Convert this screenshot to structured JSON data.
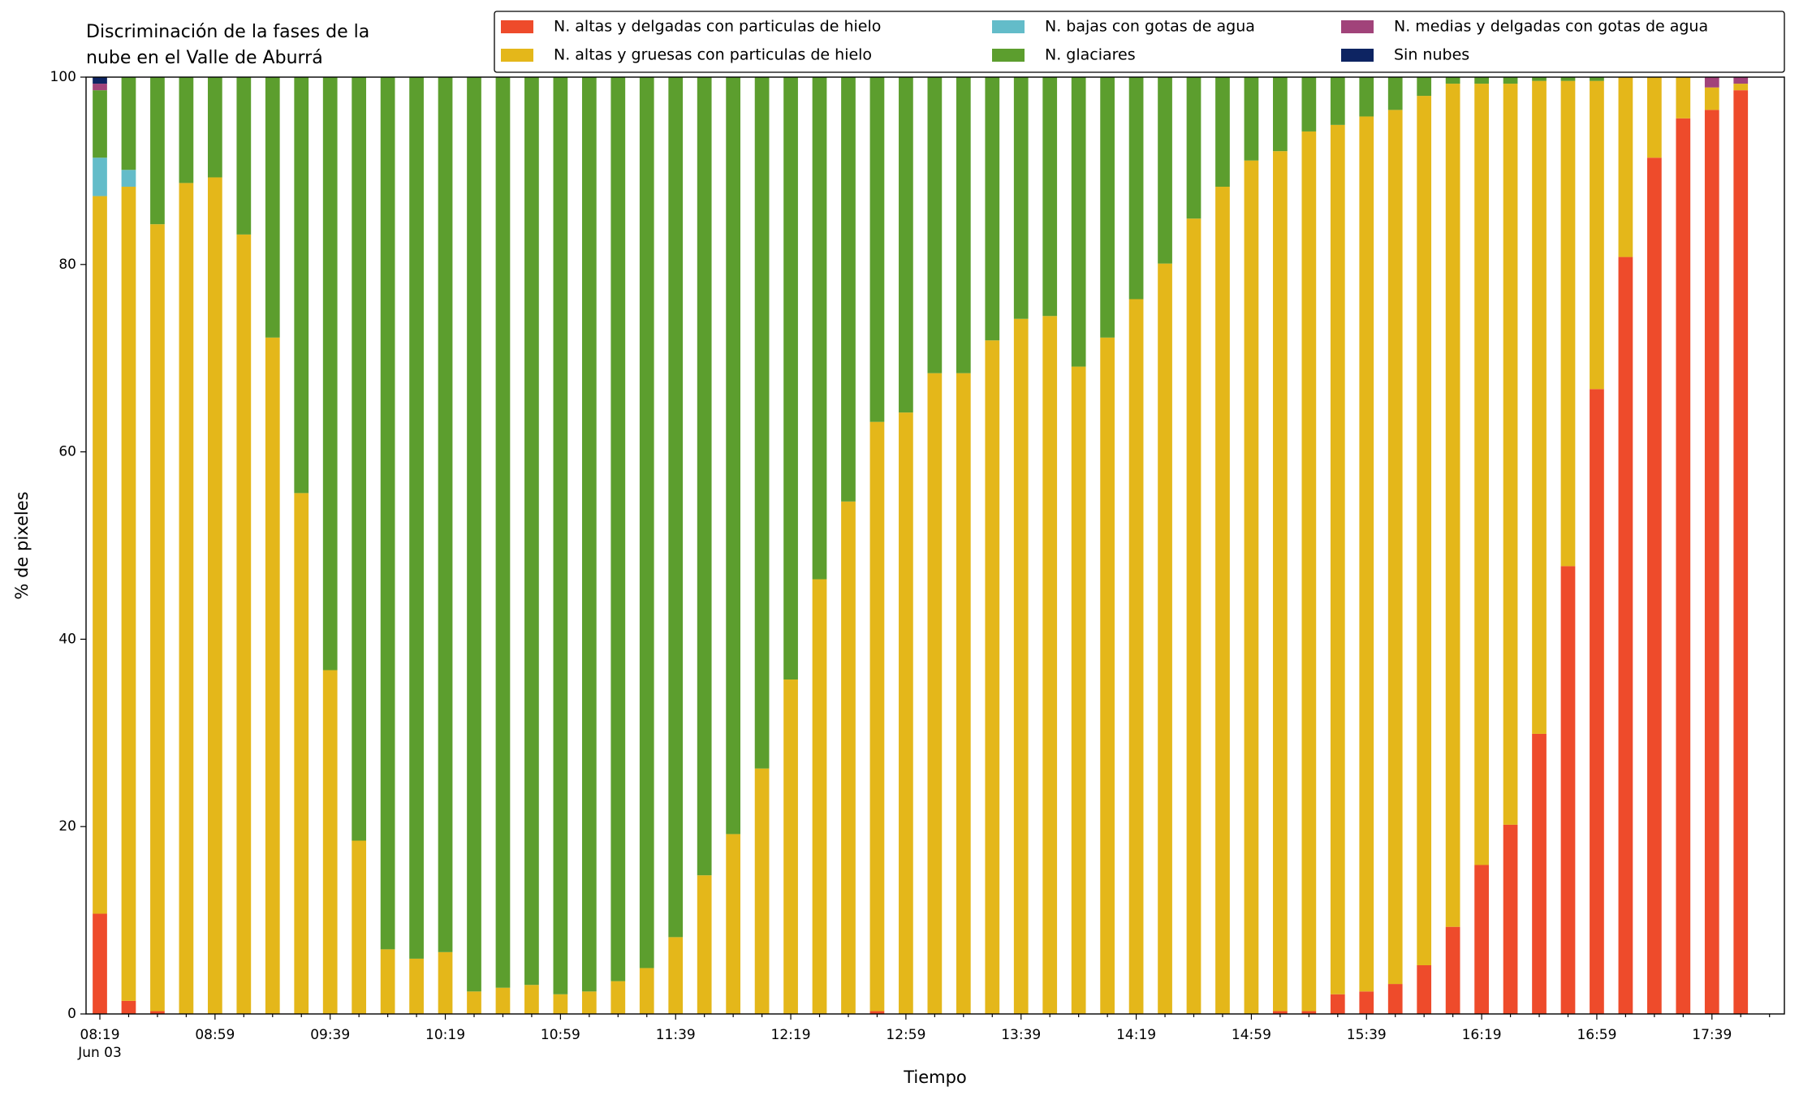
{
  "chart_data": {
    "type": "stacked_bar",
    "title": [
      "Discriminación de la fases de la",
      "nube en el Valle de Aburrá"
    ],
    "xlabel": "Tiempo",
    "ylabel": "% de pixeles",
    "date_label": "Jun 03",
    "categories": [
      "08:19",
      null,
      null,
      null,
      "08:59",
      null,
      null,
      null,
      "09:39",
      null,
      null,
      null,
      "10:19",
      null,
      null,
      null,
      "10:59",
      null,
      null,
      null,
      "11:39",
      null,
      null,
      null,
      "12:19",
      null,
      null,
      null,
      "12:59",
      null,
      null,
      null,
      "13:39",
      null,
      null,
      null,
      "14:19",
      null,
      null,
      null,
      "14:59",
      null,
      null,
      null,
      "15:39",
      null,
      null,
      null,
      "16:19",
      null,
      null,
      null,
      "16:59",
      null,
      null,
      null,
      "17:39",
      null
    ],
    "ylim": [
      0,
      100
    ],
    "yticks": [
      0,
      20,
      40,
      60,
      80,
      100
    ],
    "grid": false,
    "legend": "top right",
    "series": [
      {
        "name": "N. altas y delgadas con particulas de hielo",
        "color": "#ee4b2b",
        "values": [
          10.7,
          1.4,
          0.3,
          0,
          0,
          0,
          0,
          0,
          0,
          0,
          0,
          0,
          0,
          0,
          0,
          0,
          0,
          0,
          0,
          0,
          0,
          0,
          0,
          0,
          0,
          0,
          0,
          0.3,
          0,
          0,
          0,
          0,
          0,
          0,
          0,
          0,
          0,
          0,
          0,
          0,
          0,
          0.3,
          0.3,
          2.1,
          2.4,
          3.2,
          5.2,
          9.3,
          15.9,
          20.2,
          29.9,
          47.8,
          66.7,
          80.8,
          91.4,
          95.6,
          96.5,
          98.6
        ]
      },
      {
        "name": "N. altas y gruesas con particulas de hielo",
        "color": "#e4b71a",
        "values": [
          76.6,
          86.9,
          84.0,
          88.7,
          89.3,
          83.2,
          72.2,
          55.6,
          36.7,
          18.5,
          6.9,
          5.9,
          6.6,
          2.4,
          2.8,
          3.1,
          2.1,
          2.4,
          3.5,
          4.9,
          8.2,
          14.8,
          19.2,
          26.2,
          35.7,
          46.4,
          54.7,
          62.9,
          64.2,
          68.4,
          68.4,
          71.9,
          74.2,
          74.5,
          69.1,
          72.2,
          76.3,
          80.1,
          84.9,
          88.3,
          91.1,
          91.8,
          93.9,
          92.8,
          93.4,
          93.3,
          92.8,
          90.0,
          83.4,
          79.1,
          69.7,
          51.8,
          32.9,
          19.2,
          8.6,
          4.4,
          2.4,
          0.7
        ]
      },
      {
        "name": "N. bajas con gotas de agua",
        "color": "#63bcc9",
        "values": [
          4.1,
          1.8,
          0,
          0,
          0,
          0,
          0,
          0,
          0,
          0,
          0,
          0,
          0,
          0,
          0,
          0,
          0,
          0,
          0,
          0,
          0,
          0,
          0,
          0,
          0,
          0,
          0,
          0,
          0,
          0,
          0,
          0,
          0,
          0,
          0,
          0,
          0,
          0,
          0,
          0,
          0,
          0,
          0,
          0,
          0,
          0,
          0,
          0,
          0,
          0,
          0,
          0,
          0,
          0,
          0,
          0,
          0,
          0
        ]
      },
      {
        "name": "N. glaciares",
        "color": "#5c9e2e",
        "values": [
          7.2,
          9.9,
          15.7,
          11.3,
          10.7,
          16.8,
          27.8,
          44.4,
          63.3,
          81.5,
          93.1,
          94.1,
          93.4,
          97.6,
          97.2,
          96.9,
          97.9,
          97.6,
          96.5,
          95.1,
          91.8,
          85.2,
          80.8,
          73.8,
          64.3,
          53.6,
          45.3,
          36.8,
          35.8,
          31.6,
          31.6,
          28.1,
          25.8,
          25.5,
          30.9,
          27.8,
          23.7,
          19.9,
          15.1,
          11.7,
          8.9,
          7.9,
          5.8,
          5.1,
          4.2,
          3.5,
          2.0,
          0.7,
          0.7,
          0.7,
          0.4,
          0.4,
          0.4,
          0,
          0,
          0,
          0,
          0
        ]
      },
      {
        "name": "N. medias y delgadas con gotas de agua",
        "color": "#a1437a",
        "values": [
          0.7,
          0,
          0,
          0,
          0,
          0,
          0,
          0,
          0,
          0,
          0,
          0,
          0,
          0,
          0,
          0,
          0,
          0,
          0,
          0,
          0,
          0,
          0,
          0,
          0,
          0,
          0,
          0,
          0,
          0,
          0,
          0,
          0,
          0,
          0,
          0,
          0,
          0,
          0,
          0,
          0,
          0,
          0,
          0,
          0,
          0,
          0,
          0,
          0,
          0,
          0,
          0,
          0,
          0,
          0,
          0,
          1.1,
          0.7
        ]
      },
      {
        "name": "Sin nubes",
        "color": "#0d2462",
        "values": [
          0.7,
          0,
          0,
          0,
          0,
          0,
          0,
          0,
          0,
          0,
          0,
          0,
          0,
          0,
          0,
          0,
          0,
          0,
          0,
          0,
          0,
          0,
          0,
          0,
          0,
          0,
          0,
          0,
          0,
          0,
          0,
          0,
          0,
          0,
          0,
          0,
          0,
          0,
          0,
          0,
          0,
          0,
          0,
          0,
          0,
          0,
          0,
          0,
          0,
          0,
          0,
          0,
          0,
          0,
          0,
          0,
          0,
          0
        ]
      }
    ]
  }
}
